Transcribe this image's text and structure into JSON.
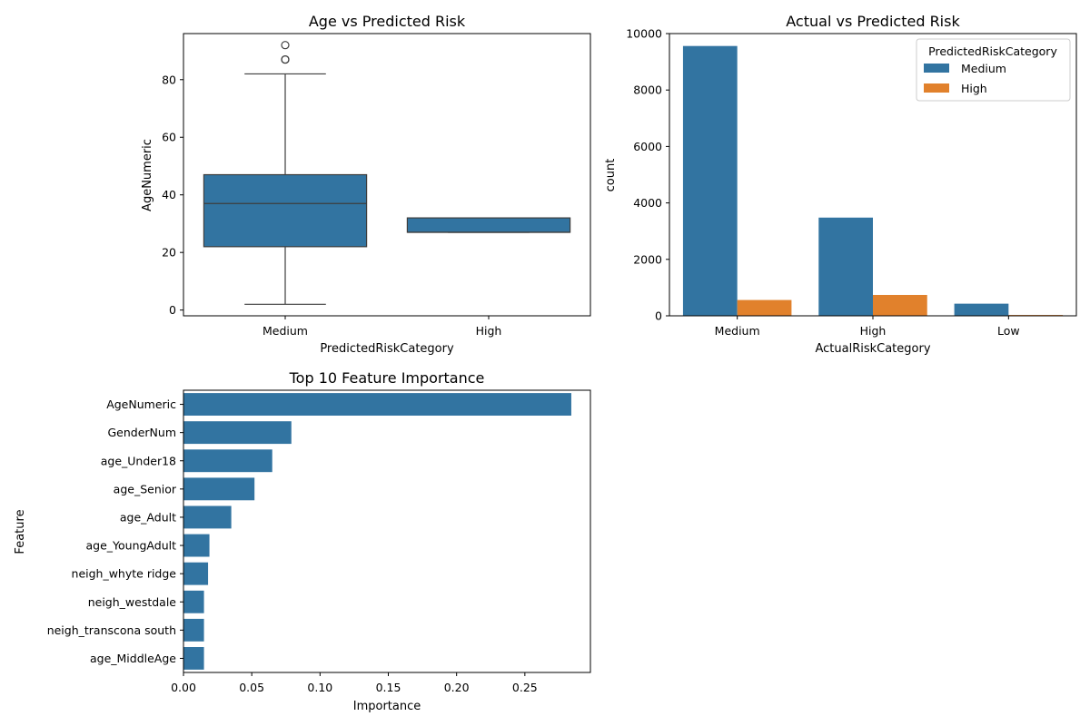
{
  "chart_data": [
    {
      "type": "box",
      "title": "Age vs Predicted Risk",
      "xlabel": "PredictedRiskCategory",
      "ylabel": "AgeNumeric",
      "ylim": [
        -2,
        96
      ],
      "yticks": [
        0,
        20,
        40,
        60,
        80
      ],
      "categories": [
        "Medium",
        "High"
      ],
      "color": "#3274a1",
      "boxes": [
        {
          "category": "Medium",
          "whisker_low": 2,
          "q1": 22,
          "median": 37,
          "q3": 47,
          "whisker_high": 82,
          "outliers": [
            87,
            87,
            92
          ]
        },
        {
          "category": "High",
          "whisker_low": 27,
          "q1": 27,
          "median": 27,
          "q3": 32,
          "whisker_high": 32,
          "outliers": []
        }
      ]
    },
    {
      "type": "bar",
      "title": "Actual vs Predicted Risk",
      "xlabel": "ActualRiskCategory",
      "ylabel": "count",
      "ylim": [
        0,
        10000
      ],
      "yticks": [
        0,
        2000,
        4000,
        6000,
        8000,
        10000
      ],
      "categories": [
        "Medium",
        "High",
        "Low"
      ],
      "legend": {
        "title": "PredictedRiskCategory",
        "placement": "top-right"
      },
      "series": [
        {
          "name": "Medium",
          "color": "#3274a1",
          "values": [
            9560,
            3480,
            430
          ]
        },
        {
          "name": "High",
          "color": "#e1812c",
          "values": [
            560,
            740,
            30
          ]
        }
      ]
    },
    {
      "type": "bar",
      "orientation": "horizontal",
      "title": "Top 10 Feature Importance",
      "xlabel": "Importance",
      "ylabel": "Feature",
      "xlim": [
        0,
        0.298
      ],
      "xticks": [
        "0.00",
        "0.05",
        "0.10",
        "0.15",
        "0.20",
        "0.25"
      ],
      "xtick_values": [
        0,
        0.05,
        0.1,
        0.15,
        0.2,
        0.25
      ],
      "color": "#3274a1",
      "categories": [
        "AgeNumeric",
        "GenderNum",
        "age_Under18",
        "age_Senior",
        "age_Adult",
        "age_YoungAdult",
        "neigh_whyte ridge",
        "neigh_westdale",
        "neigh_transcona south",
        "age_MiddleAge"
      ],
      "values": [
        0.284,
        0.079,
        0.065,
        0.052,
        0.035,
        0.019,
        0.018,
        0.015,
        0.015,
        0.015
      ]
    }
  ]
}
